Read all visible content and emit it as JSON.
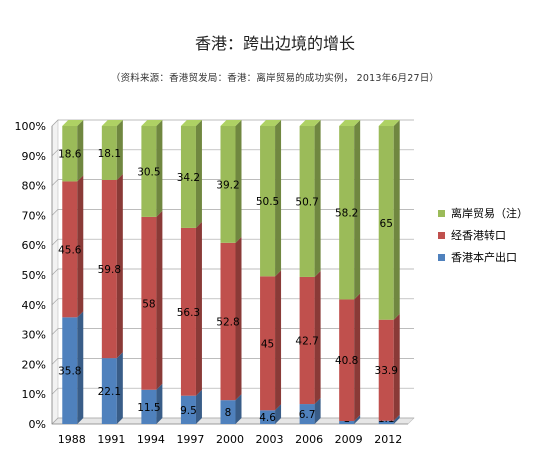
{
  "title": "香港：跨出边境的增长",
  "subtitle": "（资料来源：香港贸发局：香港：离岸贸易的成功实例， 2013年6月27日）",
  "colors": {
    "offshore": "#9bbb59",
    "reexport": "#c0504d",
    "domestic": "#4f81bd"
  },
  "chart_data": {
    "type": "bar",
    "stacked": true,
    "percent_stacked": true,
    "categories": [
      "1988",
      "1991",
      "1994",
      "1997",
      "2000",
      "2003",
      "2006",
      "2009",
      "2012"
    ],
    "y_tick_labels": [
      "0%",
      "10%",
      "20%",
      "30%",
      "40%",
      "50%",
      "60%",
      "70%",
      "80%",
      "90%",
      "100%"
    ],
    "ylim": [
      0,
      100
    ],
    "grid": true,
    "legend_position": "right",
    "series": [
      {
        "name": "香港本产出口",
        "key": "domestic",
        "values": [
          35.8,
          22.1,
          11.5,
          9.5,
          8,
          4.6,
          6.7,
          1,
          1.1
        ],
        "labels": [
          "35.8",
          "22.1",
          "11.5",
          "9.5",
          "8",
          "4.6",
          "6.7",
          "1",
          "1.1"
        ]
      },
      {
        "name": "经香港转口",
        "key": "reexport",
        "values": [
          45.6,
          59.8,
          58,
          56.3,
          52.8,
          45,
          42.7,
          40.8,
          33.9
        ],
        "labels": [
          "45.6",
          "59.8",
          "58",
          "56.3",
          "52.8",
          "45",
          "42.7",
          "40.8",
          "33.9"
        ]
      },
      {
        "name": "离岸贸易（注）",
        "key": "offshore",
        "values": [
          18.6,
          18.1,
          30.5,
          34.2,
          39.2,
          50.5,
          50.7,
          58.2,
          65
        ],
        "labels": [
          "18.6",
          "18.1",
          "30.5",
          "34.2",
          "39.2",
          "50.5",
          "50.7",
          "58.2",
          "65"
        ]
      }
    ],
    "legend_order": [
      "offshore",
      "reexport",
      "domestic"
    ]
  }
}
